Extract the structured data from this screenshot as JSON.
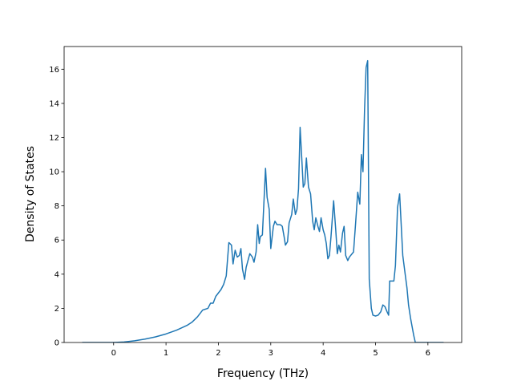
{
  "chart_data": {
    "type": "line",
    "x_label": "Frequency (THz)",
    "y_label": "Density of States",
    "x": [
      -0.6,
      0,
      0.2,
      0.4,
      0.6,
      0.8,
      1.0,
      1.2,
      1.4,
      1.5,
      1.6,
      1.7,
      1.8,
      1.85,
      1.9,
      1.95,
      2.0,
      2.05,
      2.1,
      2.15,
      2.2,
      2.25,
      2.28,
      2.32,
      2.36,
      2.4,
      2.43,
      2.46,
      2.5,
      2.53,
      2.6,
      2.65,
      2.68,
      2.72,
      2.75,
      2.78,
      2.8,
      2.84,
      2.9,
      2.93,
      2.97,
      3.0,
      3.05,
      3.08,
      3.12,
      3.18,
      3.22,
      3.26,
      3.28,
      3.32,
      3.35,
      3.4,
      3.43,
      3.47,
      3.5,
      3.53,
      3.56,
      3.6,
      3.62,
      3.65,
      3.68,
      3.72,
      3.76,
      3.8,
      3.83,
      3.86,
      3.9,
      3.93,
      3.96,
      4.0,
      4.03,
      4.06,
      4.09,
      4.12,
      4.15,
      4.2,
      4.24,
      4.27,
      4.3,
      4.33,
      4.37,
      4.4,
      4.43,
      4.47,
      4.5,
      4.58,
      4.62,
      4.66,
      4.7,
      4.73,
      4.76,
      4.79,
      4.82,
      4.85,
      4.88,
      4.92,
      4.95,
      5.0,
      5.05,
      5.1,
      5.14,
      5.18,
      5.22,
      5.25,
      5.27,
      5.32,
      5.35,
      5.38,
      5.42,
      5.46,
      5.49,
      5.52,
      5.57,
      5.6,
      5.63,
      5.67,
      5.7,
      5.73,
      5.76,
      6.0,
      6.3
    ],
    "series": [
      {
        "color": "#1f77b4",
        "values": [
          0,
          0,
          0.03,
          0.1,
          0.2,
          0.33,
          0.5,
          0.72,
          1.0,
          1.2,
          1.5,
          1.9,
          2.0,
          2.3,
          2.3,
          2.7,
          2.9,
          3.1,
          3.4,
          3.9,
          5.85,
          5.7,
          4.6,
          5.4,
          5.0,
          5.1,
          5.5,
          4.3,
          3.7,
          4.4,
          5.2,
          5.0,
          4.7,
          5.3,
          6.9,
          5.8,
          6.2,
          6.3,
          10.2,
          8.5,
          7.8,
          5.5,
          6.8,
          7.1,
          6.9,
          6.9,
          6.8,
          6.1,
          5.7,
          5.9,
          7.0,
          7.5,
          8.4,
          7.5,
          7.8,
          9.0,
          12.6,
          10.3,
          9.1,
          9.3,
          10.8,
          9.1,
          8.7,
          7.1,
          6.6,
          7.3,
          6.8,
          6.5,
          7.3,
          6.6,
          6.3,
          5.8,
          4.9,
          5.1,
          6.2,
          8.3,
          6.6,
          5.2,
          5.7,
          5.3,
          6.4,
          6.8,
          5.1,
          4.8,
          5.0,
          5.3,
          7.0,
          8.8,
          8.1,
          11.0,
          10.0,
          13.6,
          16.1,
          16.5,
          3.7,
          2.0,
          1.6,
          1.55,
          1.6,
          1.8,
          2.2,
          2.1,
          1.8,
          1.6,
          3.6,
          3.6,
          3.6,
          4.5,
          7.9,
          8.7,
          6.9,
          5.1,
          3.9,
          3.2,
          2.2,
          1.4,
          0.9,
          0.4,
          0,
          0,
          0
        ]
      }
    ],
    "xlim": [
      -0.945,
      6.645
    ],
    "ylim": [
      0,
      17.33
    ],
    "xticks": [
      0,
      1,
      2,
      3,
      4,
      5,
      6
    ],
    "yticks": [
      0,
      2,
      4,
      6,
      8,
      10,
      12,
      14,
      16
    ]
  }
}
